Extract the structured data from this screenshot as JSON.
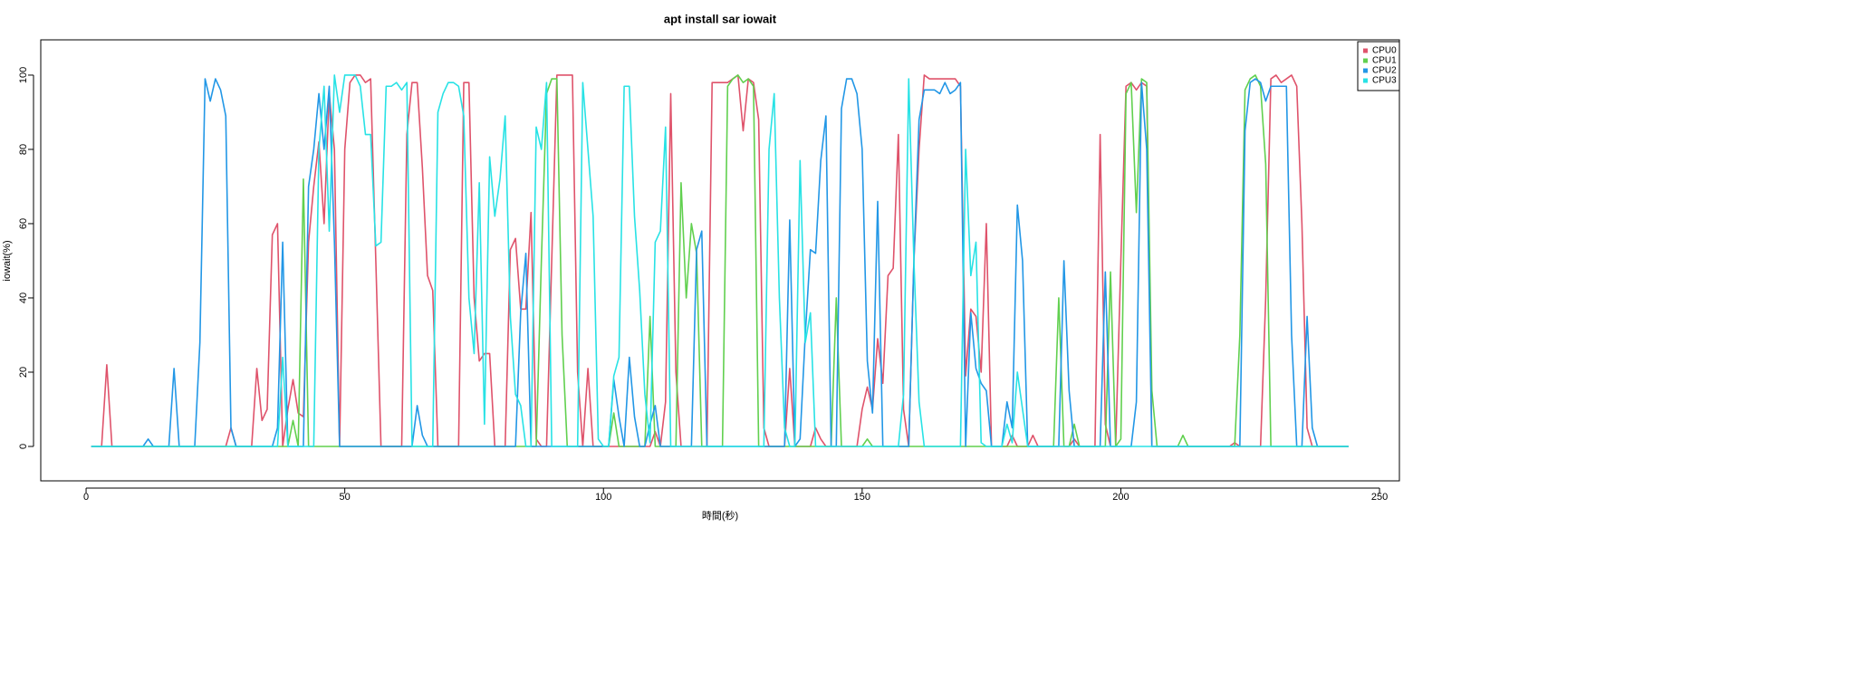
{
  "chart_data": {
    "type": "line",
    "title": "apt install sar iowait",
    "x_label": "時間(秒)",
    "y_label": "iowait(%)",
    "xlim": [
      -8.76,
      253.84
    ],
    "ylim": [
      -9.27,
      109.5
    ],
    "xticks": [
      0,
      50,
      100,
      150,
      200,
      250
    ],
    "yticks": [
      0,
      20,
      40,
      60,
      80,
      100
    ],
    "legend": "topright",
    "x": [
      1,
      2,
      3,
      4,
      5,
      6,
      7,
      8,
      9,
      10,
      11,
      12,
      13,
      14,
      15,
      16,
      17,
      18,
      19,
      20,
      21,
      22,
      23,
      24,
      25,
      26,
      27,
      28,
      29,
      30,
      31,
      32,
      33,
      34,
      35,
      36,
      37,
      38,
      39,
      40,
      41,
      42,
      43,
      44,
      45,
      46,
      47,
      48,
      49,
      50,
      51,
      52,
      53,
      54,
      55,
      56,
      57,
      58,
      59,
      60,
      61,
      62,
      63,
      64,
      65,
      66,
      67,
      68,
      69,
      70,
      71,
      72,
      73,
      74,
      75,
      76,
      77,
      78,
      79,
      80,
      81,
      82,
      83,
      84,
      85,
      86,
      87,
      88,
      89,
      90,
      91,
      92,
      93,
      94,
      95,
      96,
      97,
      98,
      99,
      100,
      101,
      102,
      103,
      104,
      105,
      106,
      107,
      108,
      109,
      110,
      111,
      112,
      113,
      114,
      115,
      116,
      117,
      118,
      119,
      120,
      121,
      122,
      123,
      124,
      125,
      126,
      127,
      128,
      129,
      130,
      131,
      132,
      133,
      134,
      135,
      136,
      137,
      138,
      139,
      140,
      141,
      142,
      143,
      144,
      145,
      146,
      147,
      148,
      149,
      150,
      151,
      152,
      153,
      154,
      155,
      156,
      157,
      158,
      159,
      160,
      161,
      162,
      163,
      164,
      165,
      166,
      167,
      168,
      169,
      170,
      171,
      172,
      173,
      174,
      175,
      176,
      177,
      178,
      179,
      180,
      181,
      182,
      183,
      184,
      185,
      186,
      187,
      188,
      189,
      190,
      191,
      192,
      193,
      194,
      195,
      196,
      197,
      198,
      199,
      200,
      201,
      202,
      203,
      204,
      205,
      206,
      207,
      208,
      209,
      210,
      211,
      212,
      213,
      214,
      215,
      216,
      217,
      218,
      219,
      220,
      221,
      222,
      223,
      224,
      225,
      226,
      227,
      228,
      229,
      230,
      231,
      232,
      233,
      234,
      235,
      236,
      237,
      238,
      239,
      240,
      241,
      242,
      243,
      244
    ],
    "series": [
      {
        "name": "CPU0",
        "color": "#DF536B",
        "values": [
          0,
          0,
          0,
          22,
          0,
          0,
          0,
          0,
          0,
          0,
          0,
          0,
          0,
          0,
          0,
          0,
          0,
          0,
          0,
          0,
          0,
          0,
          0,
          0,
          0,
          0,
          0,
          5,
          0,
          0,
          0,
          0,
          21,
          7,
          10,
          57,
          60,
          0,
          10,
          18,
          9,
          8,
          55,
          70,
          82,
          60,
          95,
          80,
          0,
          80,
          98,
          100,
          100,
          98,
          99,
          50,
          0,
          0,
          0,
          0,
          0,
          84,
          98,
          98,
          75,
          46,
          42,
          0,
          0,
          0,
          0,
          0,
          98,
          98,
          40,
          23,
          25,
          25,
          0,
          0,
          0,
          53,
          56,
          37,
          37,
          63,
          2,
          0,
          0,
          50,
          100,
          100,
          100,
          100,
          20,
          0,
          21,
          0,
          0,
          0,
          0,
          0,
          0,
          0,
          0,
          0,
          0,
          0,
          0,
          4,
          0,
          12,
          95,
          20,
          0,
          0,
          0,
          0,
          0,
          0,
          98,
          98,
          98,
          98,
          99,
          100,
          85,
          99,
          98,
          88,
          5,
          0,
          0,
          0,
          0,
          21,
          0,
          0,
          0,
          0,
          5,
          2,
          0,
          0,
          0,
          0,
          0,
          0,
          0,
          10,
          16,
          10,
          29,
          17,
          46,
          48,
          84,
          10,
          0,
          50,
          80,
          100,
          99,
          99,
          99,
          99,
          99,
          99,
          97,
          19,
          37,
          35,
          20,
          60,
          0,
          0,
          0,
          0,
          3,
          0,
          0,
          0,
          3,
          0,
          0,
          0,
          0,
          0,
          0,
          0,
          2,
          0,
          0,
          0,
          0,
          84,
          6,
          0,
          0,
          50,
          97,
          98,
          96,
          98,
          97,
          0,
          0,
          0,
          0,
          0,
          0,
          0,
          0,
          0,
          0,
          0,
          0,
          0,
          0,
          0,
          0,
          1,
          0,
          0,
          0,
          0,
          0,
          40,
          99,
          100,
          98,
          99,
          100,
          97,
          60,
          5,
          0,
          0,
          0,
          0,
          0,
          0,
          0,
          0
        ]
      },
      {
        "name": "CPU1",
        "color": "#61D04F",
        "values": [
          0,
          0,
          0,
          0,
          0,
          0,
          0,
          0,
          0,
          0,
          0,
          0,
          0,
          0,
          0,
          0,
          0,
          0,
          0,
          0,
          0,
          0,
          0,
          0,
          0,
          0,
          0,
          0,
          0,
          0,
          0,
          0,
          0,
          0,
          0,
          0,
          0,
          0,
          0,
          7,
          0,
          72,
          0,
          0,
          0,
          0,
          0,
          0,
          0,
          0,
          0,
          0,
          0,
          0,
          0,
          0,
          0,
          0,
          0,
          0,
          0,
          0,
          0,
          0,
          0,
          0,
          0,
          0,
          0,
          0,
          0,
          0,
          0,
          0,
          0,
          0,
          0,
          0,
          0,
          0,
          0,
          0,
          0,
          0,
          0,
          0,
          0,
          50,
          95,
          99,
          99,
          30,
          0,
          0,
          0,
          0,
          0,
          0,
          0,
          0,
          0,
          9,
          0,
          0,
          0,
          0,
          0,
          0,
          35,
          0,
          0,
          0,
          0,
          0,
          71,
          40,
          60,
          52,
          0,
          0,
          0,
          0,
          0,
          97,
          99,
          100,
          98,
          99,
          97,
          0,
          0,
          0,
          0,
          0,
          0,
          0,
          0,
          0,
          0,
          0,
          0,
          0,
          0,
          0,
          40,
          0,
          0,
          0,
          0,
          0,
          2,
          0,
          0,
          0,
          0,
          0,
          0,
          0,
          0,
          0,
          0,
          0,
          0,
          0,
          0,
          0,
          0,
          0,
          0,
          0,
          0,
          0,
          0,
          0,
          0,
          0,
          0,
          0,
          0,
          0,
          0,
          0,
          0,
          0,
          0,
          0,
          0,
          40,
          0,
          0,
          6,
          0,
          0,
          0,
          0,
          0,
          0,
          47,
          0,
          2,
          95,
          98,
          63,
          99,
          98,
          15,
          0,
          0,
          0,
          0,
          0,
          3,
          0,
          0,
          0,
          0,
          0,
          0,
          0,
          0,
          0,
          0,
          30,
          96,
          99,
          100,
          97,
          76,
          0,
          0,
          0,
          0,
          0,
          0,
          0,
          0,
          0,
          0,
          0,
          0,
          0,
          0,
          0,
          0
        ]
      },
      {
        "name": "CPU2",
        "color": "#2297E6",
        "values": [
          0,
          0,
          0,
          0,
          0,
          0,
          0,
          0,
          0,
          0,
          0,
          2,
          0,
          0,
          0,
          0,
          21,
          0,
          0,
          0,
          0,
          28,
          99,
          93,
          99,
          96,
          89,
          5,
          0,
          0,
          0,
          0,
          0,
          0,
          0,
          0,
          5,
          55,
          0,
          0,
          0,
          0,
          70,
          80,
          95,
          80,
          97,
          55,
          0,
          0,
          0,
          0,
          0,
          0,
          0,
          0,
          0,
          0,
          0,
          0,
          0,
          0,
          0,
          11,
          3,
          0,
          0,
          0,
          0,
          0,
          0,
          0,
          0,
          0,
          0,
          0,
          0,
          0,
          0,
          0,
          0,
          0,
          0,
          36,
          52,
          0,
          0,
          0,
          0,
          0,
          0,
          0,
          0,
          0,
          0,
          0,
          0,
          0,
          0,
          0,
          0,
          18,
          8,
          0,
          24,
          8,
          0,
          0,
          6,
          11,
          0,
          0,
          0,
          0,
          0,
          0,
          0,
          53,
          58,
          0,
          0,
          0,
          0,
          0,
          0,
          0,
          0,
          0,
          0,
          0,
          0,
          0,
          0,
          0,
          0,
          61,
          0,
          2,
          30,
          53,
          52,
          77,
          89,
          0,
          0,
          91,
          99,
          99,
          95,
          80,
          23,
          9,
          66,
          0,
          0,
          0,
          0,
          0,
          0,
          50,
          88,
          96,
          96,
          96,
          95,
          98,
          95,
          96,
          98,
          0,
          36,
          21,
          17,
          15,
          0,
          0,
          0,
          12,
          5,
          65,
          50,
          0,
          0,
          0,
          0,
          0,
          0,
          0,
          50,
          15,
          0,
          0,
          0,
          0,
          0,
          0,
          47,
          0,
          0,
          0,
          0,
          0,
          12,
          98,
          80,
          0,
          0,
          0,
          0,
          0,
          0,
          0,
          0,
          0,
          0,
          0,
          0,
          0,
          0,
          0,
          0,
          0,
          0,
          85,
          98,
          99,
          98,
          93,
          97,
          97,
          97,
          97,
          30,
          0,
          0,
          35,
          5,
          0,
          0,
          0,
          0,
          0,
          0,
          0
        ]
      },
      {
        "name": "CPU3",
        "color": "#28E2E5",
        "values": [
          0,
          0,
          0,
          0,
          0,
          0,
          0,
          0,
          0,
          0,
          0,
          0,
          0,
          0,
          0,
          0,
          0,
          0,
          0,
          0,
          0,
          0,
          0,
          0,
          0,
          0,
          0,
          0,
          0,
          0,
          0,
          0,
          0,
          0,
          0,
          0,
          0,
          24,
          0,
          0,
          0,
          0,
          0,
          0,
          80,
          97,
          58,
          100,
          90,
          100,
          100,
          100,
          97,
          84,
          84,
          54,
          55,
          97,
          97,
          98,
          96,
          98,
          0,
          0,
          0,
          0,
          0,
          90,
          95,
          98,
          98,
          97,
          89,
          40,
          25,
          71,
          6,
          78,
          62,
          72,
          89,
          35,
          14,
          11,
          0,
          0,
          86,
          80,
          98,
          0,
          0,
          0,
          0,
          0,
          0,
          98,
          80,
          62,
          2,
          0,
          0,
          19,
          24,
          97,
          97,
          62,
          42,
          14,
          1,
          55,
          58,
          86,
          0,
          0,
          0,
          0,
          0,
          0,
          0,
          0,
          0,
          0,
          0,
          0,
          0,
          0,
          0,
          0,
          0,
          0,
          0,
          80,
          95,
          40,
          5,
          0,
          0,
          77,
          28,
          36,
          0,
          0,
          0,
          0,
          0,
          0,
          0,
          0,
          0,
          0,
          0,
          0,
          0,
          0,
          0,
          0,
          0,
          14,
          99,
          50,
          12,
          0,
          0,
          0,
          0,
          0,
          0,
          0,
          0,
          80,
          46,
          55,
          1,
          0,
          0,
          0,
          0,
          6,
          1,
          20,
          10,
          0,
          0,
          0,
          0,
          0,
          0,
          0,
          0,
          0,
          0,
          0,
          0,
          0,
          0,
          0,
          0,
          0,
          0,
          0,
          0,
          0,
          0,
          0,
          0,
          0,
          0,
          0,
          0,
          0,
          0,
          0,
          0,
          0,
          0,
          0,
          0,
          0,
          0,
          0,
          0,
          0,
          0,
          0,
          0,
          0,
          0,
          0,
          0,
          0,
          0,
          0,
          0,
          0,
          0,
          0,
          0,
          0,
          0,
          0,
          0,
          0,
          0,
          0
        ]
      }
    ]
  }
}
